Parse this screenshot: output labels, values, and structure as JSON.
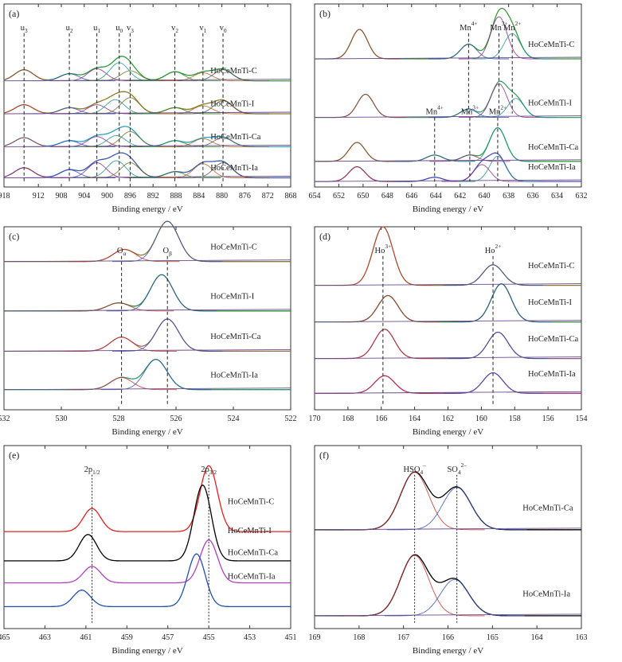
{
  "figure": {
    "chart_data": [
      {
        "type": "line",
        "panel": "(a)",
        "xlabel": "Binding energy / eV",
        "xlim": [
          918,
          868
        ],
        "xticks": [
          "918",
          "912",
          "908",
          "904",
          "900",
          "896",
          "892",
          "888",
          "884",
          "880",
          "876",
          "872",
          "868"
        ],
        "tick_values": [
          918,
          912,
          908,
          904,
          900,
          896,
          892,
          888,
          884,
          880,
          876,
          872,
          868
        ],
        "peak_labels": [
          {
            "label": "u",
            "sub": "3",
            "x": 914.5
          },
          {
            "label": "u",
            "sub": "2",
            "x": 906.6
          },
          {
            "label": "u",
            "sub": "1",
            "x": 901.8
          },
          {
            "label": "u",
            "sub": "0",
            "x": 897.9
          },
          {
            "label": "v",
            "sub": "3",
            "x": 896.0
          },
          {
            "label": "v",
            "sub": "2",
            "x": 888.2
          },
          {
            "label": "v",
            "sub": "1",
            "x": 883.3
          },
          {
            "label": "v",
            "sub": "0",
            "x": 879.8
          }
        ],
        "series": [
          {
            "name": "HoCeMnTi-C",
            "fit_peaks": [
              [
                914.5,
                0.55
              ],
              [
                906.6,
                0.35
              ],
              [
                901.8,
                0.6
              ],
              [
                897.9,
                0.9
              ],
              [
                896.0,
                0.5
              ],
              [
                888.2,
                0.45
              ],
              [
                883.3,
                0.4
              ],
              [
                879.8,
                0.55
              ]
            ],
            "color": "#2e9b3a"
          },
          {
            "name": "HoCeMnTi-I",
            "fit_peaks": [
              [
                914.5,
                0.45
              ],
              [
                906.6,
                0.3
              ],
              [
                901.8,
                0.45
              ],
              [
                898.6,
                0.7
              ],
              [
                896.0,
                0.8
              ],
              [
                888.2,
                0.3
              ],
              [
                883.3,
                0.4
              ],
              [
                879.8,
                0.65
              ]
            ],
            "color": "#8a7a2a"
          },
          {
            "name": "HoCeMnTi-Ca",
            "fit_peaks": [
              [
                914.5,
                0.45
              ],
              [
                906.6,
                0.3
              ],
              [
                901.8,
                0.5
              ],
              [
                898.4,
                0.55
              ],
              [
                896.0,
                0.75
              ],
              [
                888.2,
                0.3
              ],
              [
                883.3,
                0.4
              ],
              [
                879.8,
                0.45
              ]
            ],
            "color": "#2aa0c0"
          },
          {
            "name": "HoCeMnTi-Ia",
            "fit_peaks": [
              [
                914.5,
                0.5
              ],
              [
                906.6,
                0.4
              ],
              [
                901.8,
                0.75
              ],
              [
                898.4,
                0.85
              ],
              [
                896.0,
                0.75
              ],
              [
                888.2,
                0.3
              ],
              [
                883.3,
                0.7
              ],
              [
                879.8,
                0.75
              ]
            ],
            "color": "#3a5ab0"
          }
        ]
      },
      {
        "type": "line",
        "panel": "(b)",
        "xlabel": "Binding energy / eV",
        "xlim": [
          654,
          632
        ],
        "xticks": [
          "654",
          "652",
          "650",
          "648",
          "646",
          "644",
          "642",
          "640",
          "638",
          "636",
          "634",
          "632"
        ],
        "tick_values": [
          654,
          652,
          650,
          648,
          646,
          644,
          642,
          640,
          638,
          636,
          634,
          632
        ],
        "peak_labels": [
          {
            "label": "Mn",
            "sup": "4+",
            "x": 641.3,
            "row": 0
          },
          {
            "label": "Mn",
            "sup": "3+",
            "x": 638.8,
            "row": 0
          },
          {
            "label": "Mn",
            "sup": "2+",
            "x": 637.7,
            "row": 0
          },
          {
            "label": "Mn",
            "sup": "4+",
            "x": 644.1,
            "row": 2
          },
          {
            "label": "Mn",
            "sup": "3+",
            "x": 641.2,
            "row": 2
          },
          {
            "label": "Mn",
            "sup": "2+",
            "x": 638.9,
            "row": 2
          }
        ],
        "series": [
          {
            "name": "HoCeMnTi-C",
            "fit_peaks": [
              [
                650.3,
                0.7
              ],
              [
                641.3,
                0.35
              ],
              [
                638.8,
                1.0
              ],
              [
                637.7,
                0.6
              ]
            ],
            "color": "#3a9a3a"
          },
          {
            "name": "HoCeMnTi-I",
            "fit_peaks": [
              [
                649.8,
                0.55
              ],
              [
                641.3,
                0.2
              ],
              [
                638.8,
                0.8
              ],
              [
                637.4,
                0.45
              ]
            ],
            "color": "#3aa06a"
          },
          {
            "name": "HoCeMnTi-Ca",
            "fit_peaks": [
              [
                650.5,
                0.45
              ],
              [
                644.1,
                0.15
              ],
              [
                641.2,
                0.15
              ],
              [
                638.9,
                0.8
              ]
            ],
            "color": "#3aa040"
          },
          {
            "name": "HoCeMnTi-Ia",
            "fit_peaks": [
              [
                650.5,
                0.35
              ],
              [
                644.1,
                0.1
              ],
              [
                640.2,
                0.4
              ],
              [
                638.9,
                0.6
              ]
            ],
            "color": "#5050c0"
          }
        ]
      },
      {
        "type": "line",
        "panel": "(c)",
        "xlabel": "Binding energy / eV",
        "xlim": [
          532,
          522
        ],
        "xticks": [
          "532",
          "530",
          "528",
          "526",
          "524",
          "522"
        ],
        "tick_values": [
          532,
          530,
          528,
          526,
          524,
          522
        ],
        "peak_labels": [
          {
            "label": "O",
            "sub": "α",
            "x": 527.9
          },
          {
            "label": "O",
            "sub": "β",
            "x": 526.3
          }
        ],
        "series": [
          {
            "name": "HoCeMnTi-C",
            "fit_peaks": [
              [
                527.8,
                0.3
              ],
              [
                526.3,
                1.0
              ]
            ],
            "color": "#8a7a3a"
          },
          {
            "name": "HoCeMnTi-I",
            "fit_peaks": [
              [
                528.0,
                0.2
              ],
              [
                526.5,
                0.9
              ]
            ],
            "color": "#2e8b3a"
          },
          {
            "name": "HoCeMnTi-Ca",
            "fit_peaks": [
              [
                527.9,
                0.35
              ],
              [
                526.3,
                0.8
              ]
            ],
            "color": "#9a6a5a"
          },
          {
            "name": "HoCeMnTi-Ia",
            "fit_peaks": [
              [
                527.9,
                0.3
              ],
              [
                526.7,
                0.75
              ]
            ],
            "color": "#2e9b6a"
          }
        ]
      },
      {
        "type": "line",
        "panel": "(d)",
        "xlabel": "Binding energy / eV",
        "xlim": [
          170,
          154
        ],
        "xticks": [
          "170",
          "168",
          "166",
          "164",
          "162",
          "160",
          "158",
          "156",
          "154"
        ],
        "tick_values": [
          170,
          168,
          166,
          164,
          162,
          160,
          158,
          156,
          154
        ],
        "peak_labels": [
          {
            "label": "Ho",
            "sup": "3+",
            "x": 165.9
          },
          {
            "label": "Ho",
            "sup": "2+",
            "x": 159.3
          }
        ],
        "series": [
          {
            "name": "HoCeMnTi-C",
            "fit_peaks": [
              [
                165.9,
                1.0
              ],
              [
                159.3,
                0.35
              ]
            ],
            "color": "#8a7a3a"
          },
          {
            "name": "HoCeMnTi-I",
            "fit_peaks": [
              [
                165.6,
                0.45
              ],
              [
                158.8,
                0.65
              ]
            ],
            "color": "#2e7a3a"
          },
          {
            "name": "HoCeMnTi-Ca",
            "fit_peaks": [
              [
                165.8,
                0.5
              ],
              [
                159.0,
                0.45
              ]
            ],
            "color": "#8a5a7a"
          },
          {
            "name": "HoCeMnTi-Ia",
            "fit_peaks": [
              [
                165.8,
                0.3
              ],
              [
                159.3,
                0.35
              ]
            ],
            "color": "#b03a8a"
          }
        ]
      },
      {
        "type": "line",
        "panel": "(e)",
        "xlabel": "Binding energy / eV",
        "xlim": [
          465,
          451
        ],
        "xticks": [
          "465",
          "463",
          "461",
          "459",
          "457",
          "455",
          "453",
          "451"
        ],
        "tick_values": [
          465,
          463,
          461,
          459,
          457,
          455,
          453,
          451
        ],
        "peak_labels": [
          {
            "label": "2p",
            "sub": "1/2",
            "x": 460.7
          },
          {
            "label": "2p",
            "sub": "3/2",
            "x": 455.0
          }
        ],
        "series": [
          {
            "name": "HoCeMnTi-C",
            "color": "#e02020",
            "peaks": [
              [
                460.7,
                0.35
              ],
              [
                455.0,
                1.0
              ]
            ]
          },
          {
            "name": "HoCeMnTi-I",
            "color": "#000000",
            "peaks": [
              [
                460.9,
                0.4
              ],
              [
                455.3,
                1.15
              ]
            ]
          },
          {
            "name": "HoCeMnTi-Ca",
            "color": "#b040c0",
            "peaks": [
              [
                460.7,
                0.25
              ],
              [
                455.0,
                0.65
              ]
            ]
          },
          {
            "name": "HoCeMnTi-Ia",
            "color": "#2050b0",
            "peaks": [
              [
                461.2,
                0.25
              ],
              [
                455.6,
                0.8
              ]
            ]
          }
        ]
      },
      {
        "type": "line",
        "panel": "(f)",
        "xlabel": "Binding energy / eV",
        "xlim": [
          169,
          163
        ],
        "xticks": [
          "169",
          "168",
          "167",
          "166",
          "165",
          "164",
          "163"
        ],
        "tick_values": [
          169,
          168,
          167,
          166,
          165,
          164,
          163
        ],
        "peak_labels": [
          {
            "label": "HSO",
            "sub": "4",
            "sup": "–",
            "x": 166.75
          },
          {
            "label": "SO",
            "sub": "4",
            "sup": "2–",
            "x": 165.8
          }
        ],
        "series": [
          {
            "name": "HoCeMnTi-Ca",
            "fit_peaks": [
              [
                166.75,
                0.95
              ],
              [
                165.8,
                0.7
              ]
            ],
            "color": "#000000"
          },
          {
            "name": "HoCeMnTi-Ia",
            "fit_peaks": [
              [
                166.75,
                1.0
              ],
              [
                165.85,
                0.6
              ]
            ],
            "color": "#000000"
          }
        ]
      }
    ]
  }
}
